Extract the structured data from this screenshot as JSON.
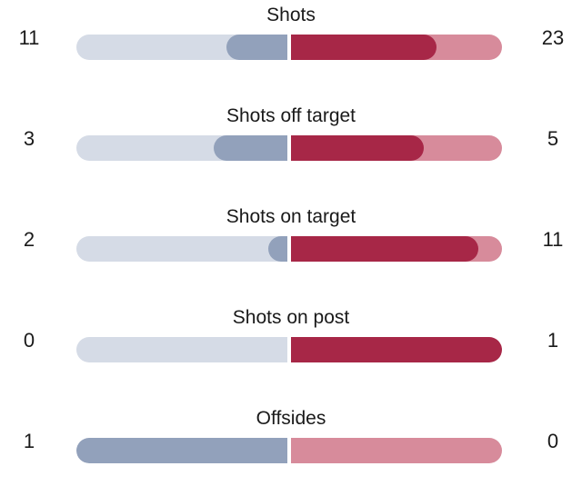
{
  "colors": {
    "home_track": "#d5dbe6",
    "home_fill": "#92a1bb",
    "away_track": "#d78b9b",
    "away_fill": "#a72747"
  },
  "stats": [
    {
      "label": "Shots",
      "home": "11",
      "away": "23",
      "home_fraction": 0.29,
      "away_fraction": 0.69
    },
    {
      "label": "Shots off target",
      "home": "3",
      "away": "5",
      "home_fraction": 0.35,
      "away_fraction": 0.63
    },
    {
      "label": "Shots on target",
      "home": "2",
      "away": "11",
      "home_fraction": 0.09,
      "away_fraction": 0.89
    },
    {
      "label": "Shots on post",
      "home": "0",
      "away": "1",
      "home_fraction": 0.0,
      "away_fraction": 1.0
    },
    {
      "label": "Offsides",
      "home": "1",
      "away": "0",
      "home_fraction": 1.0,
      "away_fraction": 0.0
    }
  ]
}
